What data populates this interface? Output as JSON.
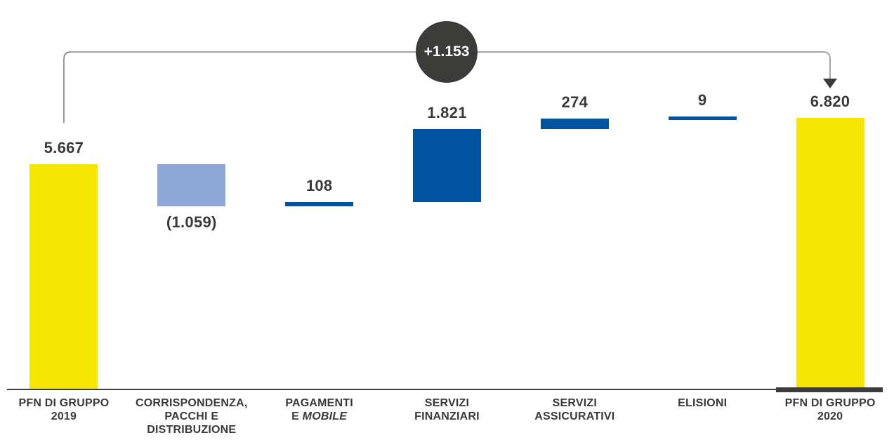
{
  "chart_data": {
    "type": "bar",
    "subtype": "waterfall",
    "title": "",
    "xlabel": "",
    "ylabel": "",
    "categories": [
      "PFN DI GRUPPO 2019",
      "CORRISPONDENZA, PACCHI E DISTRIBUZIONE",
      "PAGAMENTI E MOBILE",
      "SERVIZI FINANZIARI",
      "SERVIZI ASSICURATIVI",
      "ELISIONI",
      "PFN DI GRUPPO 2020"
    ],
    "bars": [
      {
        "slug": "pfn-di-gruppo-2019",
        "label_lines": [
          "PFN DI GRUPPO",
          "2019"
        ],
        "value": 5667,
        "value_label": "5.667",
        "kind": "total",
        "color": "yellow"
      },
      {
        "slug": "corrispondenza-pacchi-e-distribuzione",
        "label_lines": [
          "CORRISPONDENZA,",
          "PACCHI E",
          "DISTRIBUZIONE"
        ],
        "value": -1059,
        "value_label": "(1.059)",
        "kind": "delta",
        "color": "lightblue"
      },
      {
        "slug": "pagamenti-e-mobile",
        "label_lines": [
          "PAGAMENTI",
          "E {MOBILE}"
        ],
        "value": 108,
        "value_label": "108",
        "kind": "delta",
        "color": "darkblue"
      },
      {
        "slug": "servizi-finanziari",
        "label_lines": [
          "SERVIZI",
          "FINANZIARI"
        ],
        "value": 1821,
        "value_label": "1.821",
        "kind": "delta",
        "color": "darkblue"
      },
      {
        "slug": "servizi-assicurativi",
        "label_lines": [
          "SERVIZI",
          "ASSICURATIVI"
        ],
        "value": 274,
        "value_label": "274",
        "kind": "delta",
        "color": "darkblue"
      },
      {
        "slug": "elisioni",
        "label_lines": [
          "ELISIONI"
        ],
        "value": 9,
        "value_label": "9",
        "kind": "delta",
        "color": "darkblue"
      },
      {
        "slug": "pfn-di-gruppo-2020",
        "label_lines": [
          "PFN DI GRUPPO",
          "2020"
        ],
        "value": 6820,
        "value_label": "6.820",
        "kind": "total",
        "color": "yellow"
      }
    ],
    "connector": {
      "badge_label": "+1.153",
      "from_category": "PFN DI GRUPPO 2019",
      "to_category": "PFN DI GRUPPO 2020"
    },
    "colors": {
      "yellow": "#f6e500",
      "darkblue": "#00539e",
      "lightblue": "#8ea6d8",
      "badge_bg": "#3b3b3a",
      "badge_text": "#ffffff",
      "text": "#3a3a3a",
      "connector_line": "#a6a6a6",
      "connector_left_line": "#6e6e6e",
      "arrow_head": "#3a3a3a",
      "axis_line": "#3d3d3d"
    },
    "layout_hints": {
      "grid": false,
      "legend": false,
      "baseline_value": 0,
      "highlighted_axis_segment_under": "PFN DI GRUPPO 2020"
    }
  }
}
